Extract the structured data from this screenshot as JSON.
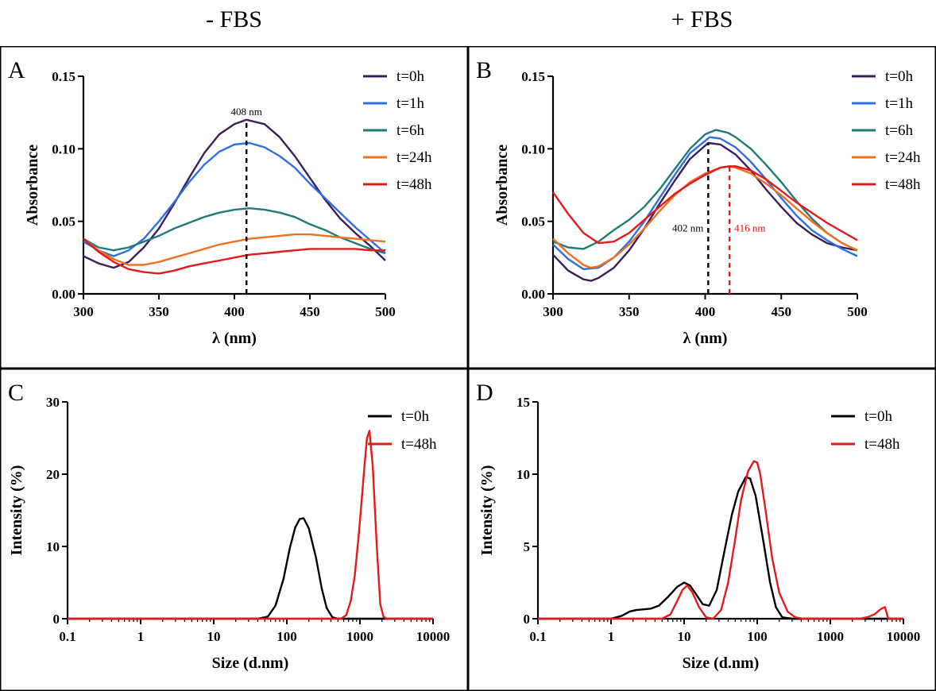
{
  "header": {
    "left_title": "- FBS",
    "right_title": "+ FBS"
  },
  "colors": {
    "t0": "#3b1f5c",
    "t1": "#2e6fe0",
    "t6": "#1f7a78",
    "t24": "#f07020",
    "t48": "#e31a1a",
    "black": "#000000",
    "red": "#e31a1a",
    "border": "#000000"
  },
  "chart_data": [
    {
      "panel": "A",
      "type": "line",
      "xlabel": "λ (nm)",
      "ylabel": "Absorbance",
      "xlim": [
        300,
        500
      ],
      "ylim": [
        0,
        0.15
      ],
      "xticks": [
        300,
        350,
        400,
        450,
        500
      ],
      "xtick_labels": [
        "300",
        "350",
        "400",
        "450",
        "500"
      ],
      "yticks": [
        0,
        0.05,
        0.1,
        0.15
      ],
      "ytick_labels": [
        "0.00",
        "0.05",
        "0.10",
        "0.15"
      ],
      "legend": "top-right",
      "grid": false,
      "series": [
        {
          "name": "t=0h",
          "color": "#3b1f5c",
          "x": [
            300,
            310,
            320,
            330,
            340,
            350,
            360,
            370,
            380,
            390,
            400,
            408,
            420,
            430,
            440,
            450,
            460,
            470,
            480,
            490,
            500
          ],
          "y": [
            0.026,
            0.021,
            0.018,
            0.022,
            0.032,
            0.045,
            0.062,
            0.08,
            0.097,
            0.11,
            0.117,
            0.12,
            0.117,
            0.108,
            0.095,
            0.08,
            0.065,
            0.052,
            0.042,
            0.033,
            0.023
          ]
        },
        {
          "name": "t=1h",
          "color": "#2e6fe0",
          "x": [
            300,
            310,
            320,
            330,
            340,
            350,
            360,
            370,
            380,
            390,
            400,
            410,
            420,
            430,
            440,
            450,
            460,
            470,
            480,
            490,
            500
          ],
          "y": [
            0.036,
            0.03,
            0.026,
            0.03,
            0.038,
            0.05,
            0.063,
            0.077,
            0.089,
            0.098,
            0.103,
            0.104,
            0.101,
            0.095,
            0.087,
            0.076,
            0.066,
            0.056,
            0.046,
            0.037,
            0.028
          ]
        },
        {
          "name": "t=6h",
          "color": "#1f7a78",
          "x": [
            300,
            310,
            320,
            330,
            340,
            350,
            360,
            370,
            380,
            390,
            400,
            410,
            420,
            430,
            440,
            450,
            460,
            470,
            480,
            490,
            500
          ],
          "y": [
            0.038,
            0.032,
            0.03,
            0.032,
            0.036,
            0.04,
            0.045,
            0.049,
            0.053,
            0.056,
            0.058,
            0.059,
            0.058,
            0.056,
            0.053,
            0.048,
            0.044,
            0.039,
            0.035,
            0.031,
            0.028
          ]
        },
        {
          "name": "t=24h",
          "color": "#f07020",
          "x": [
            300,
            310,
            320,
            330,
            340,
            350,
            360,
            370,
            380,
            390,
            400,
            410,
            420,
            430,
            440,
            450,
            460,
            470,
            480,
            490,
            500
          ],
          "y": [
            0.038,
            0.03,
            0.024,
            0.02,
            0.02,
            0.022,
            0.025,
            0.028,
            0.031,
            0.034,
            0.036,
            0.038,
            0.039,
            0.04,
            0.041,
            0.041,
            0.04,
            0.039,
            0.038,
            0.037,
            0.036
          ]
        },
        {
          "name": "t=48h",
          "color": "#e31a1a",
          "x": [
            300,
            310,
            320,
            330,
            340,
            350,
            360,
            370,
            380,
            390,
            400,
            410,
            420,
            430,
            440,
            450,
            460,
            470,
            480,
            490,
            500
          ],
          "y": [
            0.038,
            0.029,
            0.022,
            0.017,
            0.015,
            0.014,
            0.016,
            0.019,
            0.021,
            0.023,
            0.025,
            0.027,
            0.028,
            0.029,
            0.03,
            0.031,
            0.031,
            0.031,
            0.031,
            0.03,
            0.03
          ]
        }
      ],
      "annotations": [
        {
          "x": 408,
          "label": "408 nm",
          "color": "#000000"
        }
      ]
    },
    {
      "panel": "B",
      "type": "line",
      "xlabel": "λ (nm)",
      "ylabel": "Absorbance",
      "xlim": [
        300,
        500
      ],
      "ylim": [
        0,
        0.15
      ],
      "xticks": [
        300,
        350,
        400,
        450,
        500
      ],
      "xtick_labels": [
        "300",
        "350",
        "400",
        "450",
        "500"
      ],
      "yticks": [
        0,
        0.05,
        0.1,
        0.15
      ],
      "ytick_labels": [
        "0.00",
        "0.05",
        "0.10",
        "0.15"
      ],
      "legend": "top-right",
      "grid": false,
      "series": [
        {
          "name": "t=0h",
          "color": "#3b1f5c",
          "x": [
            300,
            310,
            320,
            325,
            330,
            340,
            350,
            360,
            370,
            380,
            390,
            402,
            410,
            420,
            430,
            440,
            450,
            460,
            470,
            480,
            490,
            500
          ],
          "y": [
            0.027,
            0.016,
            0.01,
            0.009,
            0.011,
            0.018,
            0.03,
            0.045,
            0.062,
            0.078,
            0.093,
            0.104,
            0.103,
            0.096,
            0.085,
            0.072,
            0.06,
            0.049,
            0.041,
            0.035,
            0.032,
            0.03
          ]
        },
        {
          "name": "t=1h",
          "color": "#2e6fe0",
          "x": [
            300,
            310,
            320,
            330,
            340,
            350,
            360,
            370,
            380,
            390,
            403,
            410,
            420,
            430,
            440,
            450,
            460,
            470,
            480,
            490,
            500
          ],
          "y": [
            0.034,
            0.024,
            0.017,
            0.018,
            0.025,
            0.036,
            0.05,
            0.066,
            0.082,
            0.097,
            0.108,
            0.107,
            0.101,
            0.091,
            0.079,
            0.066,
            0.054,
            0.044,
            0.037,
            0.031,
            0.026
          ]
        },
        {
          "name": "t=6h",
          "color": "#1f7a78",
          "x": [
            300,
            310,
            320,
            330,
            340,
            350,
            360,
            370,
            380,
            390,
            400,
            407,
            415,
            420,
            430,
            440,
            450,
            460,
            470,
            480,
            490,
            500
          ],
          "y": [
            0.036,
            0.032,
            0.031,
            0.036,
            0.044,
            0.051,
            0.06,
            0.072,
            0.086,
            0.1,
            0.11,
            0.113,
            0.111,
            0.108,
            0.1,
            0.089,
            0.077,
            0.064,
            0.052,
            0.042,
            0.035,
            0.03
          ]
        },
        {
          "name": "t=24h",
          "color": "#f07020",
          "x": [
            300,
            310,
            320,
            325,
            330,
            340,
            350,
            360,
            370,
            380,
            390,
            400,
            410,
            416,
            420,
            430,
            440,
            450,
            460,
            470,
            480,
            490,
            500
          ],
          "y": [
            0.038,
            0.028,
            0.02,
            0.018,
            0.019,
            0.025,
            0.034,
            0.045,
            0.057,
            0.068,
            0.077,
            0.083,
            0.087,
            0.088,
            0.087,
            0.083,
            0.076,
            0.068,
            0.059,
            0.05,
            0.042,
            0.035,
            0.03
          ]
        },
        {
          "name": "t=48h",
          "color": "#e31a1a",
          "x": [
            300,
            310,
            320,
            330,
            340,
            350,
            360,
            370,
            380,
            390,
            400,
            410,
            416,
            420,
            430,
            440,
            450,
            460,
            470,
            480,
            490,
            500
          ],
          "y": [
            0.07,
            0.055,
            0.042,
            0.035,
            0.036,
            0.042,
            0.051,
            0.06,
            0.069,
            0.076,
            0.082,
            0.087,
            0.088,
            0.088,
            0.085,
            0.079,
            0.071,
            0.063,
            0.056,
            0.049,
            0.043,
            0.037
          ]
        }
      ],
      "annotations": [
        {
          "x": 402,
          "label": "402 nm",
          "color": "#000000"
        },
        {
          "x": 416,
          "label": "416 nm",
          "color": "#e31a1a"
        }
      ]
    },
    {
      "panel": "C",
      "type": "line",
      "xlabel": "Size (d.nm)",
      "ylabel": "Intensity (%)",
      "xscale": "log",
      "xlim": [
        0.1,
        10000
      ],
      "ylim": [
        0,
        30
      ],
      "xticks": [
        0.1,
        1,
        10,
        100,
        1000,
        10000
      ],
      "xtick_labels": [
        "0.1",
        "1",
        "10",
        "100",
        "1000",
        "10000"
      ],
      "yticks": [
        0,
        10,
        20,
        30
      ],
      "ytick_labels": [
        "0",
        "10",
        "20",
        "30"
      ],
      "legend": "top-right",
      "grid": false,
      "series": [
        {
          "name": "t=0h",
          "color": "#000000",
          "x": [
            0.1,
            40,
            55,
            70,
            90,
            110,
            130,
            150,
            170,
            200,
            250,
            300,
            350,
            420,
            500,
            10000
          ],
          "y": [
            0,
            0,
            0.3,
            1.8,
            5.5,
            9.8,
            12.6,
            13.8,
            13.9,
            12.5,
            8.5,
            4.2,
            1.5,
            0.2,
            0,
            0
          ]
        },
        {
          "name": "t=48h",
          "color": "#e31a1a",
          "x": [
            0.1,
            550,
            650,
            750,
            850,
            950,
            1050,
            1150,
            1250,
            1350,
            1500,
            1700,
            1900,
            2100,
            2300,
            10000
          ],
          "y": [
            0,
            0,
            0.5,
            2.5,
            6.0,
            11.0,
            16.0,
            21.0,
            25.0,
            26.0,
            21.0,
            10.0,
            2.0,
            0.3,
            0,
            0
          ]
        }
      ]
    },
    {
      "panel": "D",
      "type": "line",
      "xlabel": "Size (d.nm)",
      "ylabel": "Intensity (%)",
      "xscale": "log",
      "xlim": [
        0.1,
        10000
      ],
      "ylim": [
        0,
        15
      ],
      "xticks": [
        0.1,
        1,
        10,
        100,
        1000,
        10000
      ],
      "xtick_labels": [
        "0.1",
        "1",
        "10",
        "100",
        "1000",
        "10000"
      ],
      "yticks": [
        0,
        5,
        10,
        15
      ],
      "ytick_labels": [
        "0",
        "5",
        "10",
        "15"
      ],
      "legend": "top-right",
      "grid": false,
      "series": [
        {
          "name": "t=0h",
          "color": "#000000",
          "x": [
            0.1,
            1.0,
            1.4,
            1.8,
            2.2,
            2.8,
            3.5,
            4.5,
            6,
            8,
            10,
            12,
            15,
            18,
            22,
            28,
            35,
            45,
            55,
            70,
            80,
            95,
            120,
            150,
            180,
            220,
            300,
            10000
          ],
          "y": [
            0,
            0,
            0.2,
            0.5,
            0.6,
            0.65,
            0.7,
            0.9,
            1.5,
            2.2,
            2.5,
            2.3,
            1.6,
            1.0,
            0.9,
            2.0,
            4.5,
            7.2,
            8.8,
            9.8,
            9.7,
            8.5,
            5.5,
            2.5,
            0.8,
            0.1,
            0,
            0
          ]
        },
        {
          "name": "t=48h",
          "color": "#e31a1a",
          "x": [
            0.1,
            5,
            6.5,
            8,
            9.5,
            11,
            13,
            16,
            20,
            25,
            32,
            40,
            50,
            60,
            75,
            90,
            100,
            110,
            130,
            160,
            200,
            260,
            330,
            420,
            2500,
            3200,
            4000,
            5000,
            5600,
            6200,
            10000
          ],
          "y": [
            0,
            0,
            0.3,
            1.2,
            2.0,
            2.3,
            1.8,
            0.8,
            0.1,
            0,
            0.6,
            2.5,
            5.5,
            8.2,
            10.2,
            10.9,
            10.8,
            10.0,
            7.5,
            4.2,
            1.8,
            0.5,
            0.1,
            0,
            0,
            0.1,
            0.3,
            0.7,
            0.8,
            0,
            0
          ]
        }
      ]
    }
  ]
}
